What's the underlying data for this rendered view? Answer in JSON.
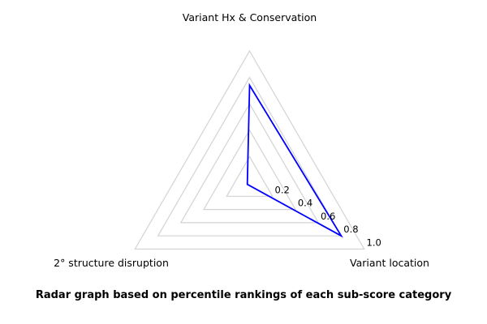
{
  "caption": "Radar graph based on percentile rankings of each sub-score category",
  "chart_data": {
    "type": "radar",
    "title": "",
    "categories": [
      "Variant Hx & Conservation",
      "Variant location",
      "2° structure disruption"
    ],
    "values": [
      0.74,
      0.8,
      0.02
    ],
    "ticks": [
      0.2,
      0.4,
      0.6,
      0.8,
      1.0
    ],
    "tick_labels": [
      "0.2",
      "0.4",
      "0.6",
      "0.8",
      "1.0"
    ],
    "rlim": [
      0,
      1.0
    ],
    "grid": true,
    "grid_shape": "concentric-triangles",
    "legend": "none",
    "colors": {
      "line": "#0000ff",
      "grid": "#d3d3d3",
      "text": "#000000",
      "background": "#ffffff"
    }
  }
}
